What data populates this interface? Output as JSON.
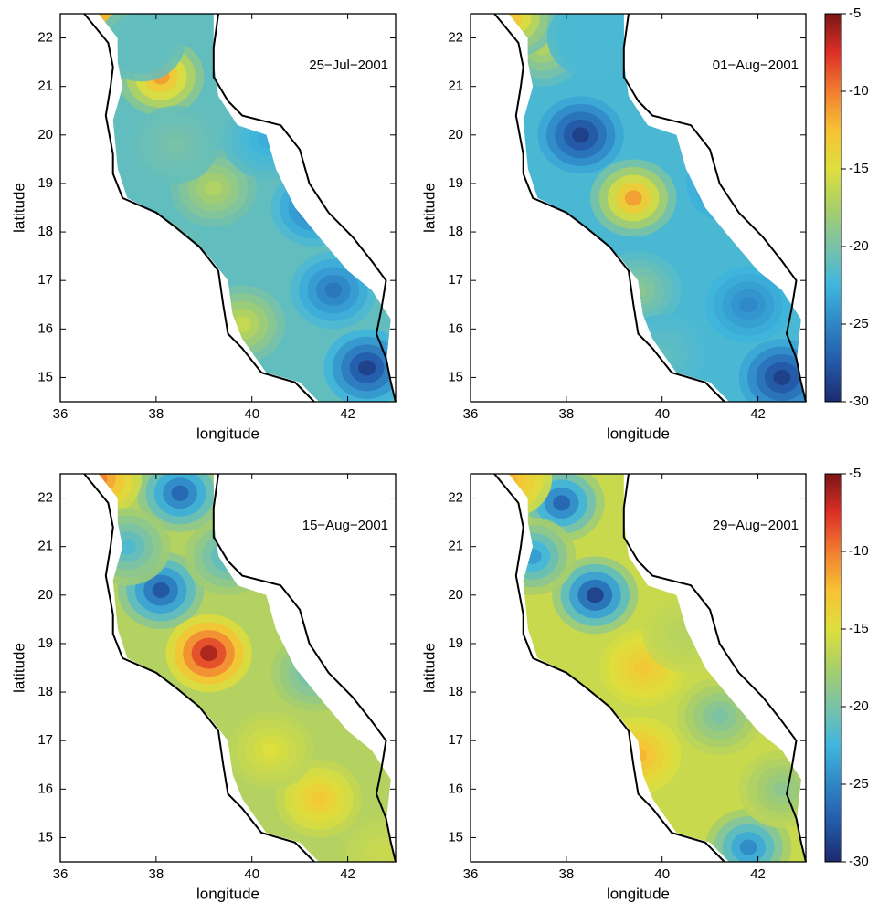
{
  "chart_data": [
    {
      "type": "contour",
      "title": "25−Jul−2001",
      "xlabel": "longitude",
      "ylabel": "latitude",
      "xlim": [
        36,
        43
      ],
      "ylim": [
        14.5,
        22.5
      ],
      "xticks": [
        36,
        38,
        40,
        42
      ],
      "yticks": [
        15,
        16,
        17,
        18,
        19,
        20,
        21,
        22
      ],
      "clim": [
        -30,
        -5
      ],
      "colormap": [
        "#1c2a6e",
        "#2359a8",
        "#2f86c6",
        "#3fb6de",
        "#79c2a8",
        "#a9cf6a",
        "#dedf3c",
        "#f7c234",
        "#f17d30",
        "#dd2f26",
        "#7a1616"
      ],
      "base": -21,
      "features": [
        {
          "lon": 38.1,
          "lat": 21.2,
          "value": -11
        },
        {
          "lon": 36.9,
          "lat": 22.4,
          "value": -12
        },
        {
          "lon": 37.7,
          "lat": 21.9,
          "value": -21
        },
        {
          "lon": 39.2,
          "lat": 18.9,
          "value": -17
        },
        {
          "lon": 38.2,
          "lat": 17.4,
          "value": -20
        },
        {
          "lon": 40.3,
          "lat": 19.9,
          "value": -23
        },
        {
          "lon": 41.3,
          "lat": 18.5,
          "value": -26
        },
        {
          "lon": 42.4,
          "lat": 15.2,
          "value": -29
        },
        {
          "lon": 41.7,
          "lat": 16.8,
          "value": -26
        },
        {
          "lon": 39.8,
          "lat": 16.1,
          "value": -16
        },
        {
          "lon": 38.4,
          "lat": 19.8,
          "value": -20
        }
      ]
    },
    {
      "type": "contour",
      "title": "01−Aug−2001",
      "xlabel": "longitude",
      "ylabel": "latitude",
      "xlim": [
        36,
        43
      ],
      "ylim": [
        14.5,
        22.5
      ],
      "xticks": [
        36,
        38,
        40,
        42
      ],
      "yticks": [
        15,
        16,
        17,
        18,
        19,
        20,
        21,
        22
      ],
      "clim": [
        -30,
        -5
      ],
      "colormap": [
        "#1c2a6e",
        "#2359a8",
        "#2f86c6",
        "#3fb6de",
        "#79c2a8",
        "#a9cf6a",
        "#dedf3c",
        "#f7c234",
        "#f17d30",
        "#dd2f26",
        "#7a1616"
      ],
      "colorbar_ticks": [
        -5,
        -10,
        -15,
        -20,
        -25,
        -30
      ],
      "base": -22,
      "features": [
        {
          "lon": 38.3,
          "lat": 20.0,
          "value": -29
        },
        {
          "lon": 39.4,
          "lat": 18.7,
          "value": -11
        },
        {
          "lon": 41.4,
          "lat": 19.0,
          "value": -26
        },
        {
          "lon": 42.5,
          "lat": 15.0,
          "value": -29
        },
        {
          "lon": 41.8,
          "lat": 16.5,
          "value": -25
        },
        {
          "lon": 39.5,
          "lat": 16.8,
          "value": -19
        },
        {
          "lon": 37.5,
          "lat": 21.8,
          "value": -17
        },
        {
          "lon": 36.9,
          "lat": 22.4,
          "value": -13
        },
        {
          "lon": 38.5,
          "lat": 22.0,
          "value": -22
        },
        {
          "lon": 40.0,
          "lat": 15.5,
          "value": -21
        }
      ]
    },
    {
      "type": "contour",
      "title": "15−Aug−2001",
      "xlabel": "longitude",
      "ylabel": "latitude",
      "xlim": [
        36,
        43
      ],
      "ylim": [
        14.5,
        22.5
      ],
      "xticks": [
        36,
        38,
        40,
        42
      ],
      "yticks": [
        15,
        16,
        17,
        18,
        19,
        20,
        21,
        22
      ],
      "clim": [
        -30,
        -5
      ],
      "colormap": [
        "#1c2a6e",
        "#2359a8",
        "#2f86c6",
        "#3fb6de",
        "#79c2a8",
        "#a9cf6a",
        "#dedf3c",
        "#f7c234",
        "#f17d30",
        "#dd2f26",
        "#7a1616"
      ],
      "base": -17,
      "features": [
        {
          "lon": 38.1,
          "lat": 20.1,
          "value": -28
        },
        {
          "lon": 38.5,
          "lat": 22.1,
          "value": -27
        },
        {
          "lon": 39.1,
          "lat": 18.8,
          "value": -6
        },
        {
          "lon": 36.8,
          "lat": 22.4,
          "value": -10
        },
        {
          "lon": 41.4,
          "lat": 15.8,
          "value": -13
        },
        {
          "lon": 41.3,
          "lat": 18.4,
          "value": -21
        },
        {
          "lon": 37.4,
          "lat": 21.0,
          "value": -22
        },
        {
          "lon": 40.4,
          "lat": 16.8,
          "value": -15
        },
        {
          "lon": 42.7,
          "lat": 14.7,
          "value": -16
        },
        {
          "lon": 39.5,
          "lat": 20.8,
          "value": -22
        }
      ]
    },
    {
      "type": "contour",
      "title": "29−Aug−2001",
      "xlabel": "longitude",
      "ylabel": "latitude",
      "xlim": [
        36,
        43
      ],
      "ylim": [
        14.5,
        22.5
      ],
      "xticks": [
        36,
        38,
        40,
        42
      ],
      "yticks": [
        15,
        16,
        17,
        18,
        19,
        20,
        21,
        22
      ],
      "clim": [
        -30,
        -5
      ],
      "colormap": [
        "#1c2a6e",
        "#2359a8",
        "#2f86c6",
        "#3fb6de",
        "#79c2a8",
        "#a9cf6a",
        "#dedf3c",
        "#f7c234",
        "#f17d30",
        "#dd2f26",
        "#7a1616"
      ],
      "colorbar_ticks": [
        -5,
        -10,
        -15,
        -20,
        -25,
        -30
      ],
      "base": -16,
      "features": [
        {
          "lon": 38.6,
          "lat": 20.0,
          "value": -29
        },
        {
          "lon": 37.9,
          "lat": 21.9,
          "value": -27
        },
        {
          "lon": 39.6,
          "lat": 18.5,
          "value": -13
        },
        {
          "lon": 39.5,
          "lat": 16.7,
          "value": -12
        },
        {
          "lon": 41.8,
          "lat": 14.8,
          "value": -25
        },
        {
          "lon": 41.2,
          "lat": 17.5,
          "value": -20
        },
        {
          "lon": 42.5,
          "lat": 16.0,
          "value": -19
        },
        {
          "lon": 36.8,
          "lat": 22.4,
          "value": -12
        },
        {
          "lon": 40.5,
          "lat": 19.2,
          "value": -17
        },
        {
          "lon": 37.3,
          "lat": 20.8,
          "value": -24
        }
      ]
    }
  ]
}
